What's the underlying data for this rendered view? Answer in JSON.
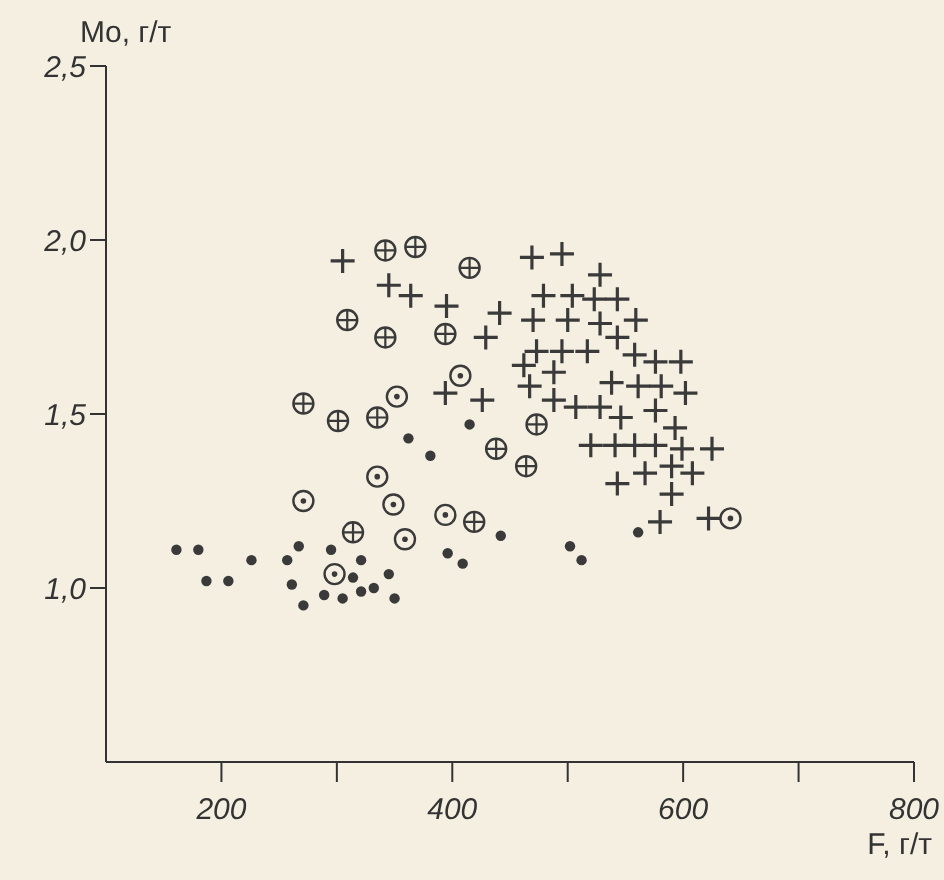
{
  "chart_data": {
    "type": "scatter",
    "xlabel": "F, г/т",
    "ylabel": "Mo, г/т",
    "xlim": [
      100,
      800
    ],
    "xticks": [
      200,
      {
        "value": 300,
        "label": null
      },
      400,
      {
        "value": 500,
        "label": null
      },
      600,
      {
        "value": 700,
        "label": null
      },
      800
    ],
    "ylim": [
      0.5,
      2.5
    ],
    "yticks": [
      {
        "value": 1.0,
        "label": "1,0"
      },
      {
        "value": 1.5,
        "label": "1,5"
      },
      {
        "value": 2.0,
        "label": "2,0"
      },
      {
        "value": 2.5,
        "label": "2,5"
      }
    ],
    "grid": false,
    "legend": false,
    "series": [
      {
        "color": "#3a3a3a",
        "marker": "circle",
        "x": [
          362,
          381,
          415,
          442,
          502,
          512,
          561,
          161,
          180,
          187,
          206,
          226,
          257,
          267,
          261,
          271,
          295,
          321,
          314,
          345,
          289,
          305,
          321,
          332,
          350,
          396,
          409
        ],
        "values": [
          1.43,
          1.38,
          1.47,
          1.15,
          1.12,
          1.08,
          1.16,
          1.11,
          1.11,
          1.02,
          1.02,
          1.08,
          1.08,
          1.12,
          1.01,
          0.95,
          1.11,
          1.08,
          1.03,
          1.04,
          0.98,
          0.97,
          0.99,
          1.0,
          0.97,
          1.1,
          1.07
        ]
      },
      {
        "color": "#3a3a3a",
        "marker": "circle-dot",
        "x": [
          407,
          352,
          335,
          271,
          349,
          394,
          359,
          298,
          641
        ],
        "values": [
          1.61,
          1.55,
          1.32,
          1.25,
          1.24,
          1.21,
          1.14,
          1.04,
          1.2
        ]
      },
      {
        "color": "#3a3a3a",
        "marker": "circle-cross",
        "x": [
          342,
          368,
          415,
          309,
          342,
          394,
          271,
          301,
          335,
          473,
          438,
          464,
          314,
          419
        ],
        "values": [
          1.97,
          1.98,
          1.92,
          1.77,
          1.72,
          1.73,
          1.53,
          1.48,
          1.49,
          1.47,
          1.4,
          1.35,
          1.16,
          1.19
        ]
      },
      {
        "color": "#3a3a3a",
        "marker": "cross",
        "x": [
          305,
          469,
          495,
          528,
          345,
          364,
          395,
          441,
          479,
          504,
          523,
          543,
          470,
          500,
          528,
          559,
          429,
          543,
          473,
          495,
          517,
          558,
          576,
          598,
          462,
          488,
          538,
          561,
          581,
          602,
          467,
          394,
          426,
          488,
          507,
          528,
          546,
          576,
          593,
          520,
          541,
          558,
          576,
          599,
          625,
          543,
          567,
          590,
          608,
          590,
          580,
          622
        ],
        "values": [
          1.94,
          1.95,
          1.96,
          1.9,
          1.87,
          1.84,
          1.81,
          1.79,
          1.84,
          1.84,
          1.83,
          1.83,
          1.77,
          1.77,
          1.76,
          1.77,
          1.72,
          1.72,
          1.68,
          1.68,
          1.68,
          1.67,
          1.65,
          1.65,
          1.64,
          1.62,
          1.59,
          1.58,
          1.58,
          1.56,
          1.58,
          1.56,
          1.54,
          1.54,
          1.52,
          1.52,
          1.49,
          1.51,
          1.46,
          1.41,
          1.41,
          1.41,
          1.41,
          1.4,
          1.4,
          1.3,
          1.33,
          1.35,
          1.33,
          1.27,
          1.19,
          1.2
        ]
      }
    ]
  }
}
